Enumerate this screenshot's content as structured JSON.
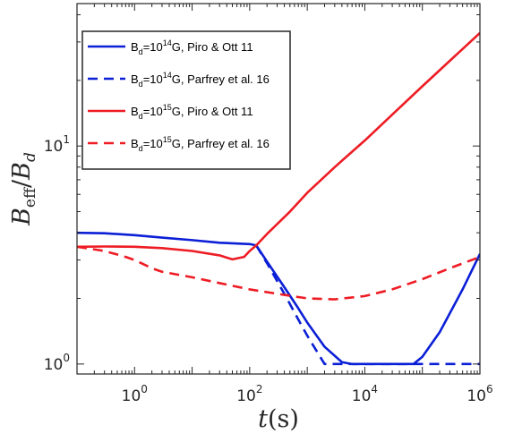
{
  "chart_data": {
    "type": "line",
    "xscale": "log",
    "yscale": "log",
    "xlim": [
      0.1,
      1000000
    ],
    "ylim": [
      0.9,
      45
    ],
    "grid": false,
    "legend_position": "top-left",
    "xlabel": {
      "main": "t",
      "unit": "(s)"
    },
    "ylabel": {
      "num": "B",
      "num_sub": "eff",
      "den": "B",
      "den_sub": "d"
    },
    "x_ticks": [
      {
        "value": 1,
        "base": "10",
        "exp": "0"
      },
      {
        "value": 100,
        "base": "10",
        "exp": "2"
      },
      {
        "value": 10000,
        "base": "10",
        "exp": "4"
      },
      {
        "value": 1000000,
        "base": "10",
        "exp": "6"
      }
    ],
    "y_ticks": [
      {
        "value": 1,
        "base": "10",
        "exp": "0"
      },
      {
        "value": 10,
        "base": "10",
        "exp": "1"
      }
    ],
    "series": [
      {
        "name": {
          "pre": "B",
          "sub": "d",
          "mid": "=10",
          "sup": "14",
          "post": "G, Piro & Ott 11"
        },
        "color": "#0b1fd6",
        "dash": "solid",
        "x": [
          0.1,
          0.3,
          1,
          3,
          10,
          30,
          100,
          130,
          200,
          400,
          700,
          1000,
          2000,
          4000,
          6000,
          10000,
          30000,
          70000,
          100000,
          200000,
          500000,
          1000000
        ],
        "y": [
          4.0,
          3.98,
          3.9,
          3.8,
          3.7,
          3.6,
          3.55,
          3.5,
          2.95,
          2.25,
          1.8,
          1.55,
          1.2,
          1.02,
          1.0,
          1.0,
          1.0,
          1.0,
          1.08,
          1.4,
          2.2,
          3.2
        ]
      },
      {
        "name": {
          "pre": "B",
          "sub": "d",
          "mid": "=10",
          "sup": "14",
          "post": "G, Parfrey et al. 16"
        },
        "color": "#0b1fd6",
        "dash": "dashed",
        "x": [
          130,
          200,
          400,
          700,
          1000,
          2000,
          10000,
          100000,
          1000000
        ],
        "y": [
          3.5,
          2.9,
          2.1,
          1.6,
          1.35,
          1.0,
          1.0,
          1.0,
          1.0
        ]
      },
      {
        "name": {
          "pre": "B",
          "sub": "d",
          "mid": "=10",
          "sup": "15",
          "post": "G, Piro & Ott 11"
        },
        "color": "#ee1c24",
        "dash": "solid",
        "x": [
          0.1,
          0.3,
          1,
          3,
          10,
          30,
          50,
          80,
          100,
          130,
          200,
          500,
          1000,
          3000,
          10000,
          100000,
          1000000
        ],
        "y": [
          3.45,
          3.46,
          3.45,
          3.4,
          3.3,
          3.15,
          3.02,
          3.1,
          3.3,
          3.5,
          3.95,
          5.0,
          6.1,
          8.0,
          10.6,
          18.8,
          33.0
        ]
      },
      {
        "name": {
          "pre": "B",
          "sub": "d",
          "mid": "=10",
          "sup": "15",
          "post": "G, Parfrey et al. 16"
        },
        "color": "#ee1c24",
        "dash": "dashed",
        "x": [
          0.1,
          0.3,
          0.7,
          1,
          2,
          3,
          10,
          30,
          100,
          300,
          1000,
          3000,
          10000,
          30000,
          100000,
          300000,
          1000000
        ],
        "y": [
          3.45,
          3.3,
          3.1,
          3.0,
          2.75,
          2.65,
          2.5,
          2.35,
          2.2,
          2.1,
          2.0,
          1.98,
          2.05,
          2.2,
          2.45,
          2.75,
          3.1
        ]
      }
    ]
  }
}
